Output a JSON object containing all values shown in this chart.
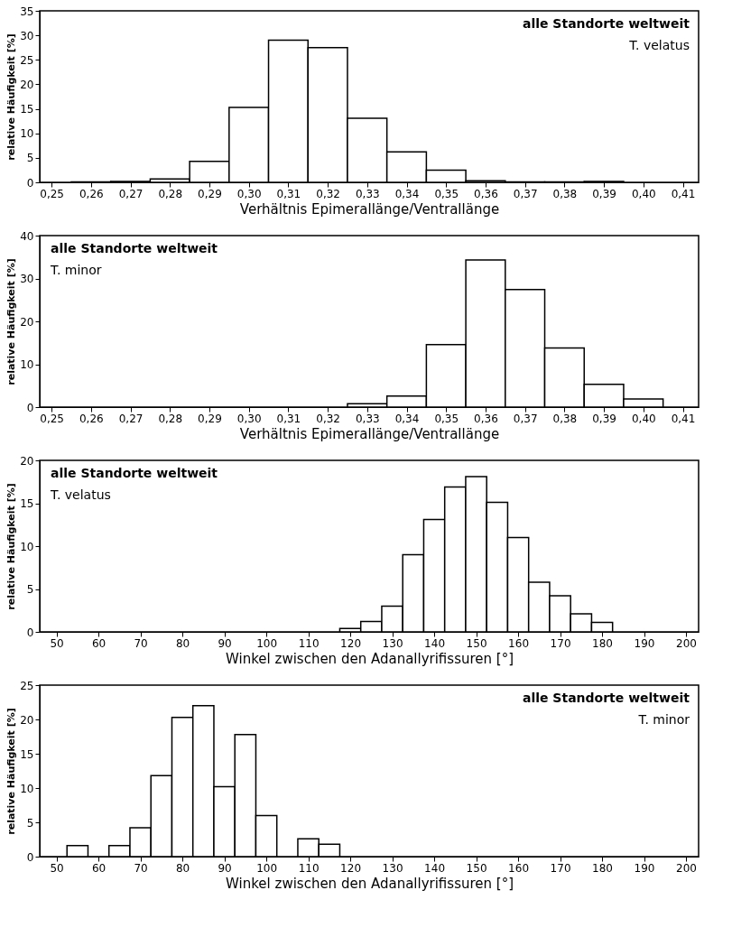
{
  "chart_data": [
    {
      "type": "histogram",
      "annotations": [
        "alle Standorte weltweit",
        "T. velatus"
      ],
      "xlabel": "Verhältnis Epimerallänge/Ventrallänge",
      "ylabel": "relative Häufigkeit [%]",
      "bins": [
        0.255,
        0.265,
        0.275,
        0.285,
        0.295,
        0.305,
        0.315,
        0.325,
        0.335,
        0.345,
        0.355,
        0.365,
        0.375,
        0.385,
        0.395
      ],
      "values": [
        0.1,
        0.2,
        0.7,
        4.3,
        15.3,
        29.0,
        27.5,
        13.1,
        6.2,
        2.5,
        0.3,
        0.1,
        0.1,
        0.2
      ],
      "color": "#ffffff",
      "xlim": [
        0.247,
        0.414
      ],
      "ylim": [
        0,
        35
      ],
      "yticks": [
        0,
        5,
        10,
        15,
        20,
        25,
        30,
        35
      ],
      "xticks": [
        {
          "value": 0.25,
          "label": "0,25"
        },
        {
          "value": 0.26,
          "label": "0,26"
        },
        {
          "value": 0.27,
          "label": "0,27"
        },
        {
          "value": 0.28,
          "label": "0,28"
        },
        {
          "value": 0.29,
          "label": "0,29"
        },
        {
          "value": 0.3,
          "label": "0,30"
        },
        {
          "value": 0.31,
          "label": "0,31"
        },
        {
          "value": 0.32,
          "label": "0,32"
        },
        {
          "value": 0.33,
          "label": "0,33"
        },
        {
          "value": 0.34,
          "label": "0,34"
        },
        {
          "value": 0.35,
          "label": "0,35"
        },
        {
          "value": 0.36,
          "label": "0,36"
        },
        {
          "value": 0.37,
          "label": "0,37"
        },
        {
          "value": 0.38,
          "label": "0,38"
        },
        {
          "value": 0.39,
          "label": "0,39"
        },
        {
          "value": 0.4,
          "label": "0,40"
        },
        {
          "value": 0.41,
          "label": "0,41"
        }
      ],
      "grid": false
    },
    {
      "type": "histogram",
      "annotations": [
        "alle Standorte weltweit",
        "T. minor"
      ],
      "xlabel": "Verhältnis Epimerallänge/Ventrallänge",
      "ylabel": "relative Häufigkeit [%]",
      "bins": [
        0.325,
        0.335,
        0.345,
        0.355,
        0.365,
        0.375,
        0.385,
        0.395,
        0.405
      ],
      "values": [
        0.8,
        2.6,
        14.6,
        34.3,
        27.4,
        13.8,
        5.3,
        1.9
      ],
      "color": "#ffffff",
      "xlim": [
        0.247,
        0.414
      ],
      "ylim": [
        0,
        40
      ],
      "yticks": [
        0,
        10,
        20,
        30,
        40
      ],
      "xticks": [
        {
          "value": 0.25,
          "label": "0,25"
        },
        {
          "value": 0.26,
          "label": "0,26"
        },
        {
          "value": 0.27,
          "label": "0,27"
        },
        {
          "value": 0.28,
          "label": "0,28"
        },
        {
          "value": 0.29,
          "label": "0,29"
        },
        {
          "value": 0.3,
          "label": "0,30"
        },
        {
          "value": 0.31,
          "label": "0,31"
        },
        {
          "value": 0.32,
          "label": "0,32"
        },
        {
          "value": 0.33,
          "label": "0,33"
        },
        {
          "value": 0.34,
          "label": "0,34"
        },
        {
          "value": 0.35,
          "label": "0,35"
        },
        {
          "value": 0.36,
          "label": "0,36"
        },
        {
          "value": 0.37,
          "label": "0,37"
        },
        {
          "value": 0.38,
          "label": "0,38"
        },
        {
          "value": 0.39,
          "label": "0,39"
        },
        {
          "value": 0.4,
          "label": "0,40"
        },
        {
          "value": 0.41,
          "label": "0,41"
        }
      ],
      "grid": false
    },
    {
      "type": "histogram",
      "annotations": [
        "alle Standorte weltweit",
        "T. velatus"
      ],
      "xlabel": "Winkel zwischen den Adanallyrifissuren [°]",
      "ylabel": "relative Häufigkeit [%]",
      "bins": [
        117.5,
        122.5,
        127.5,
        132.5,
        137.5,
        142.5,
        147.5,
        152.5,
        157.5,
        162.5,
        167.5,
        172.5,
        177.5,
        182.5
      ],
      "values": [
        0.4,
        1.2,
        3.0,
        9.0,
        13.1,
        16.9,
        18.1,
        15.1,
        11.0,
        5.8,
        4.2,
        2.1,
        1.1
      ],
      "color": "#ffffff",
      "xlim": [
        46,
        203
      ],
      "ylim": [
        0,
        20
      ],
      "yticks": [
        0,
        5,
        10,
        15,
        20
      ],
      "xticks": [
        50,
        60,
        70,
        80,
        90,
        100,
        110,
        120,
        130,
        140,
        150,
        160,
        170,
        180,
        190,
        200
      ],
      "grid": false
    },
    {
      "type": "histogram",
      "annotations": [
        "alle Standorte weltweit",
        "T. minor"
      ],
      "xlabel": "Winkel zwischen den Adanallyrifissuren [°]",
      "ylabel": "relative Häufigkeit [%]",
      "bins": [
        52.5,
        57.5,
        62.5,
        67.5,
        72.5,
        77.5,
        82.5,
        87.5,
        92.5,
        97.5,
        102.5,
        107.5,
        112.5,
        117.5
      ],
      "values": [
        1.6,
        null,
        1.6,
        4.2,
        11.8,
        20.3,
        22.0,
        10.2,
        17.8,
        6.0,
        null,
        2.6,
        1.8
      ],
      "color": "#ffffff",
      "xlim": [
        46,
        203
      ],
      "ylim": [
        0,
        25
      ],
      "yticks": [
        0,
        5,
        10,
        15,
        20,
        25
      ],
      "xticks": [
        50,
        60,
        70,
        80,
        90,
        100,
        110,
        120,
        130,
        140,
        150,
        160,
        170,
        180,
        190,
        200
      ],
      "grid": false
    }
  ]
}
